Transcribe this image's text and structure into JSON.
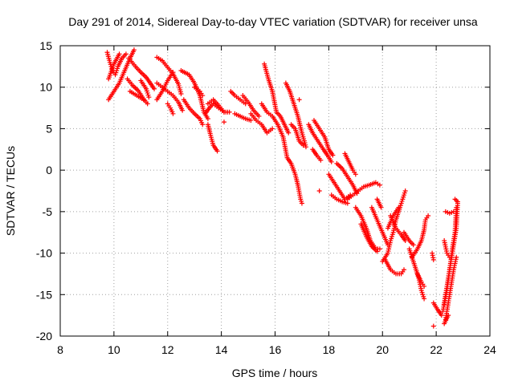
{
  "chart_data": {
    "type": "scatter",
    "title": "Day 291 of 2014, Sidereal Day-to-day VTEC variation (SDTVAR) for receiver unsa",
    "xlabel": "GPS time / hours",
    "ylabel": "SDTVAR / TECUs",
    "xlim": [
      8,
      24
    ],
    "ylim": [
      -20,
      15
    ],
    "xticks": [
      "8",
      "10",
      "12",
      "14",
      "16",
      "18",
      "20",
      "22",
      "24"
    ],
    "yticks": [
      "15",
      "10",
      "5",
      "0",
      "-5",
      "-10",
      "-15",
      "-20"
    ],
    "grid": true,
    "marker": "+",
    "series": [
      {
        "name": "SDTVAR",
        "color": "#ff0000",
        "segments": [
          [
            [
              9.75,
              14.2
            ],
            [
              9.85,
              13.0
            ],
            [
              9.95,
              12.0
            ],
            [
              10.05,
              11.5
            ],
            [
              10.15,
              12.5
            ],
            [
              10.3,
              13.5
            ],
            [
              10.45,
              14.0
            ]
          ],
          [
            [
              9.8,
              8.5
            ],
            [
              10.0,
              9.5
            ],
            [
              10.2,
              10.5
            ],
            [
              10.4,
              12.0
            ],
            [
              10.6,
              13.5
            ],
            [
              10.75,
              14.5
            ]
          ],
          [
            [
              9.8,
              11.0
            ],
            [
              10.0,
              12.8
            ],
            [
              10.2,
              14.0
            ]
          ],
          [
            [
              10.55,
              13.5
            ],
            [
              10.8,
              12.5
            ],
            [
              11.0,
              11.8
            ],
            [
              11.2,
              11.2
            ],
            [
              11.35,
              10.5
            ],
            [
              11.5,
              9.8
            ]
          ],
          [
            [
              10.5,
              11.0
            ],
            [
              10.7,
              10.2
            ],
            [
              10.9,
              9.6
            ],
            [
              11.1,
              8.6
            ],
            [
              11.25,
              8.0
            ]
          ],
          [
            [
              10.6,
              9.5
            ],
            [
              10.85,
              9.0
            ],
            [
              11.1,
              8.5
            ]
          ],
          [
            [
              11.0,
              10.8
            ],
            [
              11.2,
              9.8
            ],
            [
              11.3,
              8.8
            ]
          ],
          [
            [
              11.6,
              13.6
            ],
            [
              11.8,
              13.2
            ],
            [
              12.0,
              12.4
            ],
            [
              12.2,
              11.6
            ],
            [
              12.4,
              10.4
            ],
            [
              12.5,
              9.2
            ]
          ],
          [
            [
              11.6,
              10.5
            ],
            [
              11.8,
              10.0
            ],
            [
              12.0,
              9.5
            ],
            [
              12.2,
              9.0
            ],
            [
              12.4,
              8.2
            ],
            [
              12.55,
              7.2
            ]
          ],
          [
            [
              11.6,
              8.5
            ],
            [
              11.8,
              9.5
            ],
            [
              12.0,
              10.8
            ],
            [
              12.2,
              11.8
            ]
          ],
          [
            [
              12.0,
              8.0
            ],
            [
              12.1,
              7.5
            ],
            [
              12.2,
              6.8
            ]
          ],
          [
            [
              12.5,
              12.0
            ],
            [
              12.8,
              11.5
            ],
            [
              13.0,
              10.5
            ],
            [
              13.2,
              9.0
            ],
            [
              13.35,
              7.0
            ],
            [
              13.5,
              6.2
            ]
          ],
          [
            [
              12.6,
              8.5
            ],
            [
              12.8,
              7.5
            ],
            [
              13.0,
              6.8
            ],
            [
              13.2,
              6.2
            ],
            [
              13.3,
              5.5
            ]
          ],
          [
            [
              13.0,
              10.0
            ],
            [
              13.2,
              9.5
            ],
            [
              13.3,
              9.0
            ]
          ],
          [
            [
              13.4,
              6.8
            ],
            [
              13.55,
              7.5
            ],
            [
              13.7,
              8.0
            ],
            [
              13.9,
              7.5
            ],
            [
              14.1,
              7.0
            ]
          ],
          [
            [
              13.5,
              5.5
            ],
            [
              13.6,
              4.2
            ],
            [
              13.7,
              3.0
            ],
            [
              13.85,
              2.3
            ]
          ],
          [
            [
              13.5,
              8.0
            ],
            [
              13.7,
              8.5
            ],
            [
              13.9,
              7.8
            ],
            [
              14.1,
              7.0
            ],
            [
              14.3,
              7.0
            ]
          ],
          [
            [
              14.1,
              5.8
            ]
          ],
          [
            [
              14.35,
              9.5
            ],
            [
              14.5,
              9.0
            ],
            [
              14.7,
              8.5
            ],
            [
              14.9,
              8.0
            ]
          ],
          [
            [
              14.5,
              6.8
            ],
            [
              14.7,
              6.5
            ],
            [
              14.9,
              6.2
            ],
            [
              15.1,
              6.0
            ]
          ],
          [
            [
              14.8,
              9.0
            ],
            [
              15.0,
              8.2
            ],
            [
              15.2,
              7.2
            ],
            [
              15.4,
              6.5
            ]
          ],
          [
            [
              15.6,
              12.8
            ],
            [
              15.75,
              11.0
            ],
            [
              15.9,
              9.5
            ],
            [
              16.05,
              7.0
            ],
            [
              16.2,
              6.5
            ],
            [
              16.35,
              5.5
            ],
            [
              16.5,
              4.5
            ]
          ],
          [
            [
              15.1,
              6.8
            ],
            [
              15.3,
              6.0
            ],
            [
              15.5,
              5.5
            ],
            [
              15.7,
              4.5
            ],
            [
              15.9,
              5.0
            ]
          ],
          [
            [
              15.5,
              8.0
            ],
            [
              15.7,
              7.0
            ],
            [
              15.9,
              6.5
            ],
            [
              16.1,
              5.5
            ],
            [
              16.3,
              4.0
            ],
            [
              16.45,
              1.5
            ],
            [
              16.6,
              0.8
            ],
            [
              16.75,
              -0.5
            ],
            [
              16.85,
              -1.8
            ],
            [
              16.95,
              -3.5
            ],
            [
              17.0,
              -4.0
            ]
          ],
          [
            [
              16.4,
              10.5
            ],
            [
              16.55,
              9.5
            ],
            [
              16.7,
              8.0
            ],
            [
              16.85,
              6.5
            ],
            [
              17.0,
              4.5
            ],
            [
              17.15,
              2.8
            ]
          ],
          [
            [
              16.6,
              5.5
            ],
            [
              16.75,
              5.0
            ],
            [
              16.9,
              3.5
            ],
            [
              17.05,
              3.0
            ]
          ],
          [
            [
              16.9,
              8.5
            ]
          ],
          [
            [
              17.25,
              5.5
            ],
            [
              17.4,
              4.5
            ],
            [
              17.6,
              3.5
            ],
            [
              17.8,
              2.5
            ],
            [
              17.95,
              1.8
            ],
            [
              18.1,
              1.0
            ]
          ],
          [
            [
              17.4,
              2.5
            ],
            [
              17.55,
              1.8
            ],
            [
              17.7,
              1.2
            ]
          ],
          [
            [
              17.45,
              6.0
            ],
            [
              17.65,
              5.0
            ],
            [
              17.85,
              4.0
            ],
            [
              18.0,
              2.5
            ],
            [
              18.15,
              1.8
            ]
          ],
          [
            [
              17.65,
              -2.5
            ]
          ],
          [
            [
              18.0,
              -0.5
            ],
            [
              18.2,
              -1.5
            ],
            [
              18.4,
              -2.5
            ],
            [
              18.6,
              -3.5
            ],
            [
              18.8,
              -3.0
            ]
          ],
          [
            [
              18.1,
              -3.0
            ],
            [
              18.3,
              -3.5
            ],
            [
              18.5,
              -3.8
            ],
            [
              18.7,
              -4.0
            ]
          ],
          [
            [
              18.3,
              0.8
            ],
            [
              18.5,
              0.2
            ],
            [
              18.7,
              -0.8
            ],
            [
              18.9,
              -1.8
            ],
            [
              19.05,
              -2.8
            ]
          ],
          [
            [
              18.6,
              2.0
            ],
            [
              18.75,
              1.0
            ],
            [
              18.9,
              0.0
            ],
            [
              19.0,
              -0.5
            ]
          ],
          [
            [
              18.7,
              -3.5
            ],
            [
              18.9,
              -3.0
            ],
            [
              19.1,
              -2.5
            ],
            [
              19.3,
              -2.0
            ],
            [
              19.5,
              -1.8
            ],
            [
              19.75,
              -1.5
            ],
            [
              19.9,
              -1.8
            ]
          ],
          [
            [
              19.0,
              -4.5
            ],
            [
              19.2,
              -5.5
            ],
            [
              19.4,
              -7.0
            ],
            [
              19.55,
              -8.5
            ],
            [
              19.75,
              -9.5
            ],
            [
              19.9,
              -9.5
            ]
          ],
          [
            [
              19.2,
              -6.5
            ],
            [
              19.4,
              -8.0
            ],
            [
              19.6,
              -9.2
            ],
            [
              19.8,
              -9.8
            ]
          ],
          [
            [
              19.6,
              -4.5
            ],
            [
              19.8,
              -6.0
            ],
            [
              20.0,
              -7.5
            ],
            [
              20.2,
              -9.0
            ]
          ],
          [
            [
              19.8,
              -3.5
            ],
            [
              19.95,
              -4.5
            ]
          ],
          [
            [
              20.0,
              -11.0
            ],
            [
              20.2,
              -10.0
            ],
            [
              20.3,
              -8.5
            ],
            [
              20.4,
              -7.5
            ],
            [
              20.5,
              -6.0
            ],
            [
              20.65,
              -4.5
            ],
            [
              20.75,
              -3.5
            ],
            [
              20.85,
              -2.5
            ]
          ],
          [
            [
              20.1,
              -10.8
            ],
            [
              20.3,
              -12.0
            ],
            [
              20.5,
              -12.5
            ],
            [
              20.7,
              -12.5
            ],
            [
              20.8,
              -12.0
            ]
          ],
          [
            [
              20.2,
              -7.0
            ],
            [
              20.4,
              -5.5
            ],
            [
              20.6,
              -4.5
            ]
          ],
          [
            [
              20.3,
              -5.5
            ],
            [
              20.5,
              -7.0
            ],
            [
              20.7,
              -7.8
            ],
            [
              20.85,
              -8.5
            ]
          ],
          [
            [
              20.8,
              -7.5
            ],
            [
              21.0,
              -8.5
            ],
            [
              21.15,
              -9.0
            ]
          ],
          [
            [
              21.0,
              -9.5
            ],
            [
              21.2,
              -11.5
            ],
            [
              21.35,
              -13.0
            ],
            [
              21.45,
              -14.5
            ],
            [
              21.55,
              -15.5
            ]
          ],
          [
            [
              21.1,
              -10.5
            ],
            [
              21.3,
              -9.5
            ],
            [
              21.45,
              -8.5
            ],
            [
              21.55,
              -7.2
            ],
            [
              21.6,
              -6.0
            ],
            [
              21.7,
              -5.5
            ]
          ],
          [
            [
              21.3,
              -12.5
            ],
            [
              21.45,
              -13.5
            ],
            [
              21.55,
              -14.0
            ]
          ],
          [
            [
              21.85,
              -10.0
            ],
            [
              21.9,
              -10.8
            ]
          ],
          [
            [
              21.9,
              -16.0
            ],
            [
              22.05,
              -16.8
            ],
            [
              22.2,
              -17.5
            ]
          ],
          [
            [
              21.9,
              -18.8
            ]
          ],
          [
            [
              22.3,
              -16.2
            ],
            [
              22.4,
              -14.5
            ],
            [
              22.5,
              -12.0
            ],
            [
              22.6,
              -9.5
            ],
            [
              22.7,
              -7.5
            ],
            [
              22.75,
              -4.5
            ]
          ],
          [
            [
              22.25,
              -17.0
            ],
            [
              22.35,
              -15.0
            ],
            [
              22.45,
              -13.0
            ],
            [
              22.55,
              -11.0
            ],
            [
              22.65,
              -9.0
            ],
            [
              22.75,
              -7.0
            ],
            [
              22.8,
              -4.0
            ]
          ],
          [
            [
              22.35,
              -18.0
            ],
            [
              22.45,
              -16.0
            ],
            [
              22.55,
              -14.0
            ],
            [
              22.65,
              -12.0
            ],
            [
              22.75,
              -10.5
            ]
          ],
          [
            [
              22.3,
              -8.5
            ],
            [
              22.4,
              -10.0
            ],
            [
              22.5,
              -10.5
            ]
          ],
          [
            [
              22.35,
              -5.0
            ],
            [
              22.5,
              -5.2
            ],
            [
              22.65,
              -5.0
            ]
          ],
          [
            [
              22.3,
              -18.5
            ],
            [
              22.45,
              -17.5
            ]
          ],
          [
            [
              22.7,
              -3.5
            ],
            [
              22.8,
              -3.8
            ]
          ]
        ]
      }
    ]
  }
}
